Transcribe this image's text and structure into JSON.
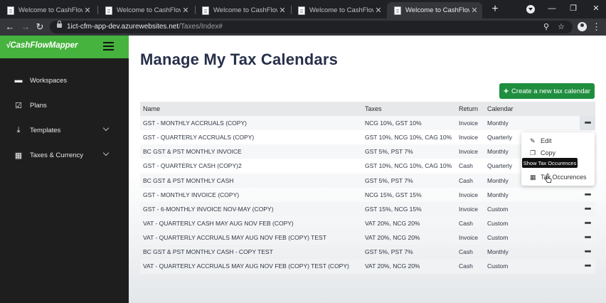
{
  "browser": {
    "tabs": [
      {
        "title": "Welcome to CashFlowMapper",
        "close": "✕"
      },
      {
        "title": "Welcome to CashFlowMapper",
        "close": "✕"
      },
      {
        "title": "Welcome to CashFlowMapper",
        "close": "✕"
      },
      {
        "title": "Welcome to CashFlowMapper",
        "close": "✕"
      },
      {
        "title": "Welcome to CashFlowMapper",
        "close": "✕"
      }
    ],
    "new_tab": "+",
    "url_host": "1ict-cfm-app-dev.azurewebsites.net",
    "url_path": "/Taxes/Index#"
  },
  "sidebar": {
    "brand": "CashFlowMapper",
    "items": [
      {
        "label": "Workspaces",
        "icon": "folder-icon"
      },
      {
        "label": "Plans",
        "icon": "checkbox-icon"
      },
      {
        "label": "Templates",
        "icon": "download-icon"
      },
      {
        "label": "Taxes & Currency",
        "icon": "calendar-icon"
      }
    ]
  },
  "main": {
    "title": "Manage My Tax Calendars",
    "create_button": "Create a new tax calendar",
    "columns": {
      "name": "Name",
      "taxes": "Taxes",
      "return": "Return",
      "calendar": "Calendar"
    },
    "rows": [
      {
        "name": "GST - MONTHLY ACCRUALS (COPY)",
        "taxes": "NCG 10%, GST 10%",
        "return": "Invoice",
        "calendar": "Monthly"
      },
      {
        "name": "GST - QUARTERLY ACCRUALS (COPY)",
        "taxes": "GST 10%, NCG 10%, CAG 10%",
        "return": "Invoice",
        "calendar": "Quarterly"
      },
      {
        "name": "BC GST & PST MONTHLY INVOICE",
        "taxes": "GST 5%, PST 7%",
        "return": "Invoice",
        "calendar": "Monthly"
      },
      {
        "name": "GST - QUARTERLY CASH (COPY)2",
        "taxes": "GST 10%, NCG 10%, CAG 10%",
        "return": "Cash",
        "calendar": "Quarterly"
      },
      {
        "name": "BC GST & PST MONTHLY CASH",
        "taxes": "GST 5%, PST 7%",
        "return": "Cash",
        "calendar": "Monthly"
      },
      {
        "name": "GST - MONTHLY INVOICE (COPY)",
        "taxes": "NCG 15%, GST 15%",
        "return": "Invoice",
        "calendar": "Monthly"
      },
      {
        "name": "GST - 6-MONTHLY INVOICE NOV-MAY (COPY)",
        "taxes": "GST 15%, NCG 15%",
        "return": "Invoice",
        "calendar": "Custom"
      },
      {
        "name": "VAT - QUARTERLY CASH MAY AUG NOV FEB (COPY)",
        "taxes": "VAT 20%, NCG 20%",
        "return": "Cash",
        "calendar": "Custom"
      },
      {
        "name": "VAT - QUARTERLY ACCRUALS MAY AUG NOV FEB (COPY) TEST",
        "taxes": "VAT 20%, NCG 20%",
        "return": "Invoice",
        "calendar": "Custom"
      },
      {
        "name": "BC GST & PST MONTHLY CASH - COPY TEST",
        "taxes": "GST 5%, PST 7%",
        "return": "Cash",
        "calendar": "Monthly"
      },
      {
        "name": "VAT - QUARTERLY ACCRUALS MAY AUG NOV FEB (COPY) TEST (COPY)",
        "taxes": "VAT 20%, NCG 20%",
        "return": "Cash",
        "calendar": "Custom"
      }
    ],
    "row_menu": "•••",
    "dropdown": {
      "edit": "Edit",
      "copy": "Copy",
      "occurrences": "Tax Occurences"
    },
    "tooltip": "Show Tax Occurences"
  },
  "colors": {
    "brand_green": "#45b33d",
    "button_green": "#1f8e3f",
    "sidebar_bg": "#1e1e1e"
  }
}
